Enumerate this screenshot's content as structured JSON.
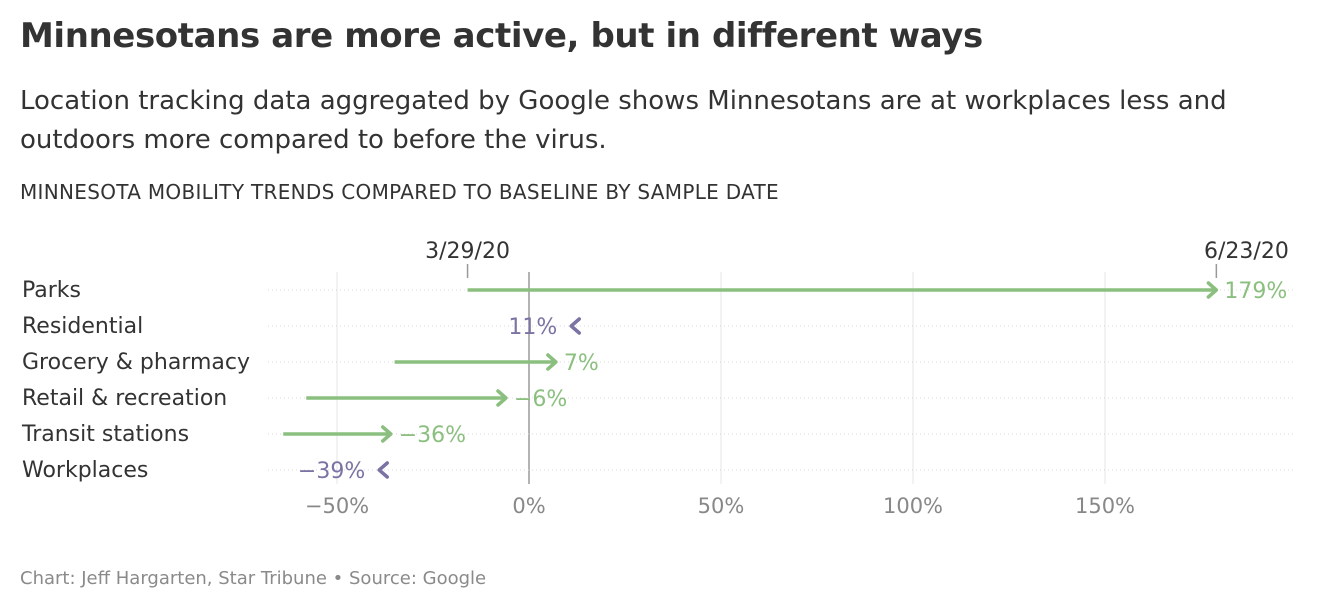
{
  "title": "Minnesotans are more active, but in different ways",
  "subtitle": "Location tracking data aggregated by Google shows Minnesotans are at workplaces less and outdoors more compared to before the virus.",
  "kicker": "MINNESOTA MOBILITY TRENDS COMPARED TO BASELINE BY SAMPLE DATE",
  "source": "Chart: Jeff Hargarten, Star Tribune • Source: Google",
  "colors": {
    "increase": "#8bbf7f",
    "decrease": "#7a73a3",
    "grid": "#e6e6e6",
    "zero": "#9a9a9a"
  },
  "chart_data": {
    "type": "arrow",
    "start_label": "3/29/20",
    "end_label": "6/23/20",
    "xlim": [
      -67,
      200
    ],
    "x_ticks": [
      {
        "value": -50,
        "label": "−50%"
      },
      {
        "value": 0,
        "label": "0%"
      },
      {
        "value": 50,
        "label": "50%"
      },
      {
        "value": 100,
        "label": "100%"
      },
      {
        "value": 150,
        "label": "150%"
      }
    ],
    "series": [
      {
        "category": "Parks",
        "start": -16,
        "end": 179,
        "label": "179%"
      },
      {
        "category": "Residential",
        "start": 14,
        "end": 11,
        "label": "11%"
      },
      {
        "category": "Grocery & pharmacy",
        "start": -35,
        "end": 7,
        "label": "7%"
      },
      {
        "category": "Retail & recreation",
        "start": -58,
        "end": -6,
        "label": "−6%"
      },
      {
        "category": "Transit stations",
        "start": -64,
        "end": -36,
        "label": "−36%"
      },
      {
        "category": "Workplaces",
        "start": -38,
        "end": -39,
        "label": "−39%"
      }
    ]
  }
}
